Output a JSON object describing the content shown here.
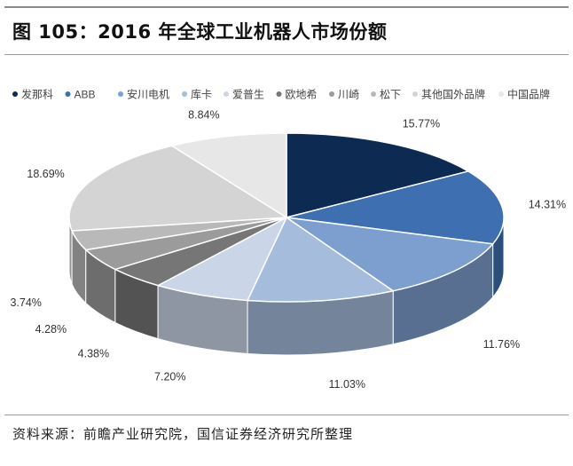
{
  "header": {
    "title": "图 105：2016 年全球工业机器人市场份额"
  },
  "footer": {
    "source": "资料来源：前瞻产业研究院，国信证券经济研究所整理"
  },
  "chart_data": {
    "type": "pie",
    "title": "图 105：2016 年全球工业机器人市场份额",
    "legend_position": "top",
    "categories": [
      "发那科",
      "ABB",
      "安川电机",
      "库卡",
      "爱普生",
      "欧地希",
      "川崎",
      "松下",
      "其他国外品牌",
      "中国品牌"
    ],
    "values": [
      15.77,
      14.31,
      11.76,
      11.03,
      7.2,
      4.38,
      4.28,
      3.74,
      18.69,
      8.84
    ],
    "labels": [
      "15.77%",
      "14.31%",
      "11.76%",
      "11.03%",
      "7.20%",
      "4.38%",
      "4.28%",
      "3.74%",
      "18.69%",
      "8.84%"
    ],
    "colors": [
      "#0c2a52",
      "#3e6fb0",
      "#7d9fd0",
      "#a6bcdc",
      "#cad6e8",
      "#767676",
      "#9b9b9b",
      "#b9b9b9",
      "#d4d4d4",
      "#e7e7e7"
    ]
  }
}
